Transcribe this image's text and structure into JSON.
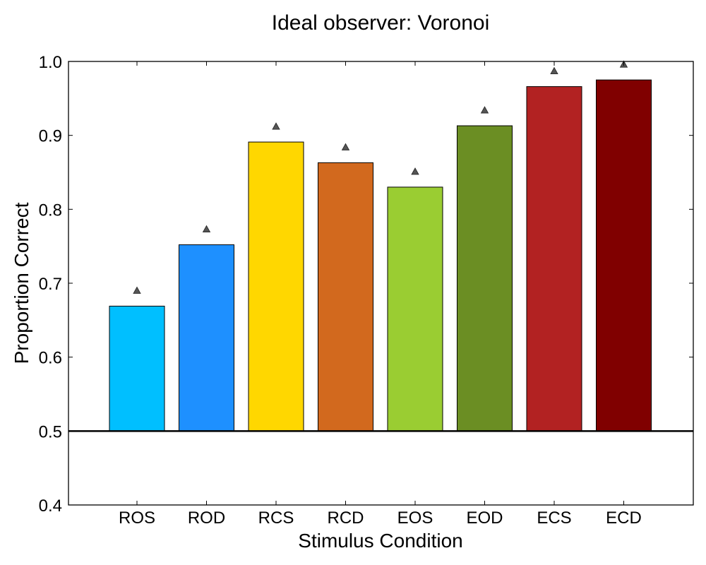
{
  "chart_data": {
    "type": "bar",
    "title": "Ideal observer: Voronoi",
    "xlabel": "Stimulus Condition",
    "ylabel": "Proportion Correct",
    "ylim": [
      0.4,
      1.0
    ],
    "yticks": [
      "0.4",
      "0.5",
      "0.6",
      "0.7",
      "0.8",
      "0.9",
      "1.0"
    ],
    "baseline": 0.5,
    "categories": [
      "ROS",
      "ROD",
      "RCS",
      "RCD",
      "EOS",
      "EOD",
      "ECS",
      "ECD"
    ],
    "values": [
      0.669,
      0.752,
      0.891,
      0.863,
      0.83,
      0.913,
      0.966,
      0.975
    ],
    "markers": [
      0.69,
      0.773,
      0.912,
      0.884,
      0.851,
      0.934,
      0.987,
      0.996
    ],
    "colors": [
      "#00BFFF",
      "#1E90FF",
      "#FFD700",
      "#D2691E",
      "#9ACD32",
      "#6B8E23",
      "#B22222",
      "#800000"
    ],
    "marker_color": "#555555",
    "grid": false,
    "legend": "none"
  }
}
